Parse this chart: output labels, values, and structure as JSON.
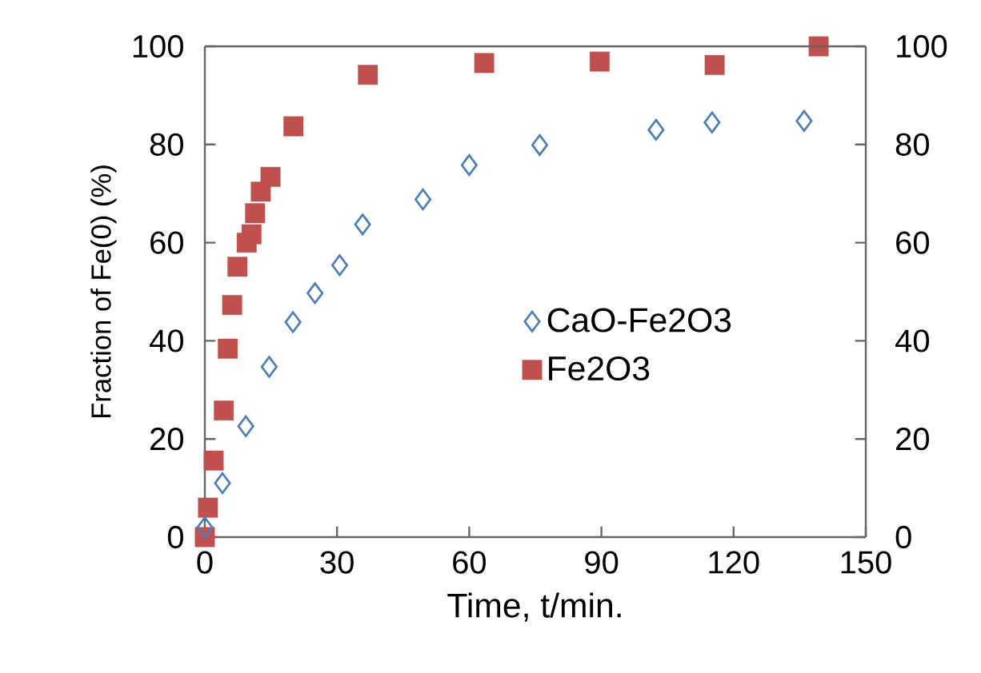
{
  "chart_data": {
    "type": "scatter",
    "xlabel": "Time, t/min.",
    "ylabel": "Fraction of Fe(0) (%)",
    "xlim": [
      0,
      150
    ],
    "xticks": [
      0,
      30,
      60,
      90,
      120,
      150
    ],
    "ylim": [
      0,
      100
    ],
    "yticks": [
      0,
      20,
      40,
      60,
      80,
      100
    ],
    "y2lim": [
      0,
      100
    ],
    "y2ticks": [
      0,
      20,
      40,
      60,
      80,
      100
    ],
    "grid": false,
    "legend": "right",
    "series": [
      {
        "name": "CaO-Fe2O3",
        "color": "#4a7ebb",
        "marker": "diamond",
        "x": [
          0,
          4,
          9.3,
          14.6,
          20,
          25,
          30.6,
          35.8,
          49.5,
          60,
          76,
          102.4,
          115.1,
          136
        ],
        "values": [
          2,
          11,
          22.6,
          34.7,
          43.8,
          49.7,
          55.4,
          63.7,
          68.8,
          75.8,
          79.9,
          83,
          84.5,
          84.8
        ]
      },
      {
        "name": "Fe2O3",
        "color": "#c0504d",
        "marker": "square",
        "x": [
          0,
          0.7,
          2,
          4.3,
          5.2,
          6.2,
          7.4,
          9.5,
          10.6,
          11.4,
          12.7,
          14.9,
          20.1,
          37,
          63.4,
          89.6,
          115.7,
          139.3
        ],
        "values": [
          0,
          6,
          15.6,
          25.8,
          38.4,
          47.3,
          55.1,
          60,
          61.7,
          66,
          70.4,
          73.4,
          83.7,
          94.2,
          96.6,
          96.9,
          96.2,
          100
        ]
      }
    ]
  }
}
